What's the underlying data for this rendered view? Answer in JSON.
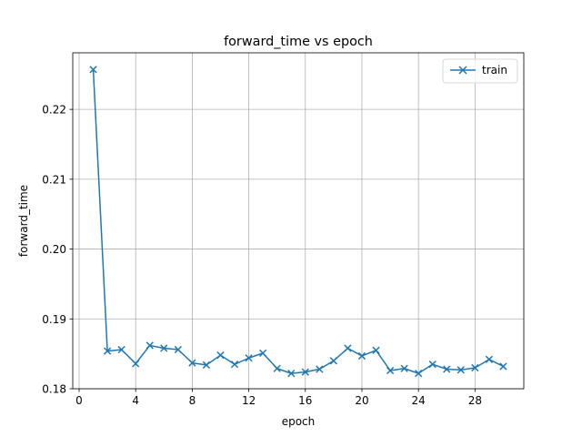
{
  "chart_data": {
    "type": "line",
    "title": "forward_time vs epoch",
    "xlabel": "epoch",
    "ylabel": "forward_time",
    "xlim": [
      -0.45,
      31.45
    ],
    "ylim": [
      0.18,
      0.2281
    ],
    "xticks": [
      0,
      4,
      8,
      12,
      16,
      20,
      24,
      28
    ],
    "yticks": [
      0.18,
      0.19,
      0.2,
      0.21,
      0.22
    ],
    "grid": true,
    "legend_position": "top-right",
    "series": [
      {
        "name": "train",
        "color": "#1f77b4",
        "marker": "x",
        "x": [
          1,
          2,
          3,
          4,
          5,
          6,
          7,
          8,
          9,
          10,
          11,
          12,
          13,
          14,
          15,
          16,
          17,
          18,
          19,
          20,
          21,
          22,
          23,
          24,
          25,
          26,
          27,
          28,
          29,
          30
        ],
        "y": [
          0.2257,
          0.1854,
          0.1856,
          0.1836,
          0.1862,
          0.1858,
          0.1856,
          0.1837,
          0.1834,
          0.1848,
          0.1835,
          0.1844,
          0.1851,
          0.1829,
          0.1822,
          0.1824,
          0.1828,
          0.184,
          0.1858,
          0.1847,
          0.1855,
          0.1826,
          0.1829,
          0.1822,
          0.1835,
          0.1828,
          0.1827,
          0.183,
          0.1842,
          0.1832
        ]
      }
    ]
  }
}
